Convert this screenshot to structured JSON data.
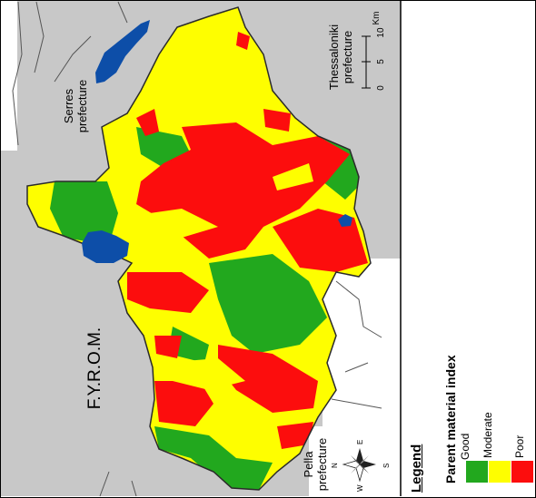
{
  "map": {
    "neighbor_labels": {
      "serres": "Serres\nprefecture",
      "thessaloniki": "Thessaloniki\nprefecture",
      "pella": "Pella\nprefecture",
      "fyrom": "F.Y.R.O.M."
    },
    "scale": {
      "unit": "Km",
      "ticks": [
        "0",
        "5",
        "10"
      ]
    },
    "north_arrow": {
      "labels": [
        "N",
        "E",
        "S",
        "W"
      ]
    }
  },
  "legend": {
    "title": "Legend",
    "subtitle": "Parent material index",
    "items": [
      {
        "label": "Good",
        "color": "#22a81e"
      },
      {
        "label": "Moderate",
        "color": "#fefe00"
      },
      {
        "label": "Poor",
        "color": "#fc0d0d"
      }
    ]
  },
  "colors": {
    "outside": "#c8c8c8",
    "lake": "#0d4ea8",
    "border": "#2a2a2a"
  }
}
